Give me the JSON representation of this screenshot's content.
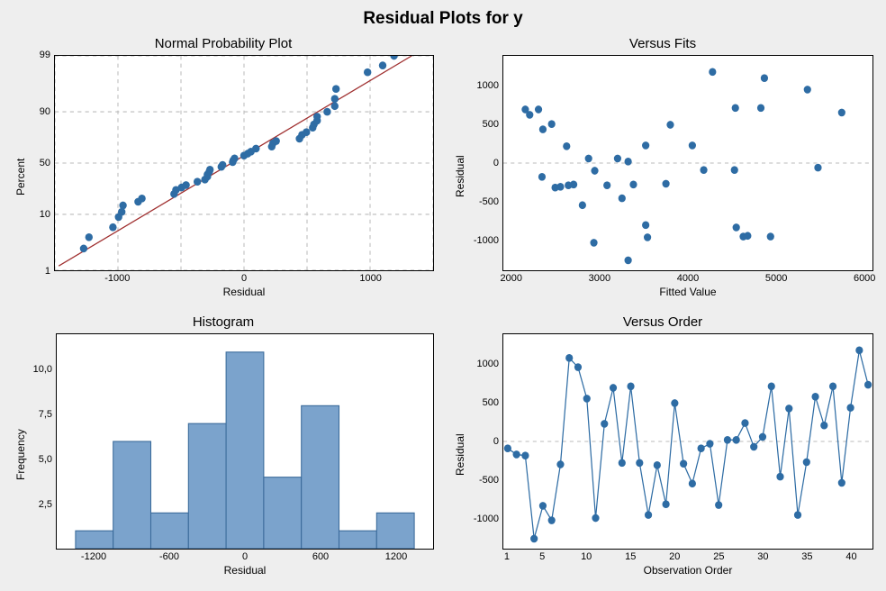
{
  "main_title": "Residual Plots for y",
  "colors": {
    "background": "#eeeeee",
    "plot_bg": "#ffffff",
    "border": "#000000",
    "grid": "#bbbbbb",
    "point_fill": "#2e6ca4",
    "bar_fill": "#7ba3cc",
    "bar_stroke": "#3a6a9a",
    "ref_line": "#a03030",
    "text": "#000000"
  },
  "fonts": {
    "main_title_size": 19,
    "sub_title_size": 15,
    "axis_label_size": 12,
    "tick_size": 11
  },
  "npp": {
    "title": "Normal Probability Plot",
    "xlabel": "Residual",
    "ylabel": "Percent",
    "xticks": [
      -1000,
      0,
      1000
    ],
    "yticks": [
      99,
      90,
      50,
      10,
      1
    ],
    "xlim": [
      -1500,
      1500
    ],
    "grid_x": [
      -1500,
      -1000,
      -500,
      0,
      500,
      1000,
      1500
    ],
    "ref_line": {
      "x1": -1470,
      "y1": 1.2,
      "x2": 1330,
      "y2": 99
    },
    "points": [
      [
        -1272,
        2.5
      ],
      [
        -1230,
        4
      ],
      [
        -1040,
        6
      ],
      [
        -995,
        9
      ],
      [
        -970,
        11
      ],
      [
        -960,
        14
      ],
      [
        -840,
        16
      ],
      [
        -810,
        18
      ],
      [
        -555,
        21
      ],
      [
        -540,
        24
      ],
      [
        -495,
        26
      ],
      [
        -460,
        28
      ],
      [
        -370,
        31
      ],
      [
        -310,
        33
      ],
      [
        -290,
        36
      ],
      [
        -290,
        38
      ],
      [
        -275,
        41
      ],
      [
        -270,
        43
      ],
      [
        -180,
        46
      ],
      [
        -170,
        48
      ],
      [
        -90,
        51
      ],
      [
        -85,
        53
      ],
      [
        -75,
        55
      ],
      [
        0,
        58
      ],
      [
        30,
        60
      ],
      [
        55,
        62
      ],
      [
        95,
        65
      ],
      [
        220,
        67
      ],
      [
        230,
        70
      ],
      [
        255,
        72
      ],
      [
        440,
        74
      ],
      [
        460,
        77
      ],
      [
        495,
        79
      ],
      [
        545,
        82
      ],
      [
        555,
        84
      ],
      [
        580,
        86
      ],
      [
        580,
        88
      ],
      [
        660,
        90
      ],
      [
        720,
        92
      ],
      [
        720,
        94
      ],
      [
        730,
        96
      ],
      [
        980,
        98
      ],
      [
        1100,
        98.5
      ],
      [
        1190,
        99
      ]
    ]
  },
  "vfits": {
    "title": "Versus Fits",
    "xlabel": "Fitted Value",
    "ylabel": "Residual",
    "xticks": [
      2000,
      3000,
      4000,
      5000,
      6000
    ],
    "yticks": [
      1000,
      500,
      0,
      -500,
      -1000
    ],
    "xlim": [
      1900,
      6100
    ],
    "ylim": [
      -1400,
      1400
    ],
    "points": [
      [
        2150,
        700
      ],
      [
        2200,
        630
      ],
      [
        2350,
        440
      ],
      [
        2300,
        700
      ],
      [
        2340,
        -180
      ],
      [
        2450,
        510
      ],
      [
        2490,
        -320
      ],
      [
        2550,
        -310
      ],
      [
        2620,
        220
      ],
      [
        2640,
        -290
      ],
      [
        2700,
        -280
      ],
      [
        2800,
        -550
      ],
      [
        2870,
        60
      ],
      [
        2940,
        -100
      ],
      [
        2930,
        -1040
      ],
      [
        3080,
        -290
      ],
      [
        3200,
        60
      ],
      [
        3250,
        -460
      ],
      [
        3320,
        20
      ],
      [
        3320,
        -1270
      ],
      [
        3380,
        -280
      ],
      [
        3520,
        230
      ],
      [
        3520,
        -810
      ],
      [
        3540,
        -970
      ],
      [
        3750,
        -270
      ],
      [
        3800,
        500
      ],
      [
        4050,
        230
      ],
      [
        4180,
        -90
      ],
      [
        4280,
        1190
      ],
      [
        4530,
        -90
      ],
      [
        4540,
        720
      ],
      [
        4550,
        -840
      ],
      [
        4630,
        -960
      ],
      [
        4680,
        -950
      ],
      [
        4830,
        720
      ],
      [
        4870,
        1110
      ],
      [
        4940,
        -960
      ],
      [
        5360,
        960
      ],
      [
        5480,
        -60
      ],
      [
        5750,
        660
      ]
    ]
  },
  "hist": {
    "title": "Histogram",
    "xlabel": "Residual",
    "ylabel": "Frequency",
    "xticks": [
      -1200,
      -600,
      0,
      600,
      1200
    ],
    "yticks": [
      "10,0",
      "7,5",
      "5,0",
      "2,5"
    ],
    "xlim": [
      -1500,
      1500
    ],
    "ylim": [
      0,
      12
    ],
    "bin_width": 300,
    "bars": [
      {
        "center": -1200,
        "count": 1
      },
      {
        "center": -900,
        "count": 6
      },
      {
        "center": -600,
        "count": 2
      },
      {
        "center": -300,
        "count": 7
      },
      {
        "center": 0,
        "count": 11
      },
      {
        "center": 300,
        "count": 4
      },
      {
        "center": 600,
        "count": 8
      },
      {
        "center": 900,
        "count": 1
      },
      {
        "center": 1200,
        "count": 2
      }
    ]
  },
  "vorder": {
    "title": "Versus Order",
    "xlabel": "Observation Order",
    "ylabel": "Residual",
    "xticks": [
      1,
      5,
      10,
      15,
      20,
      25,
      30,
      35,
      40
    ],
    "yticks": [
      1000,
      500,
      0,
      -500,
      -1000
    ],
    "xlim": [
      0.5,
      42.5
    ],
    "ylim": [
      -1400,
      1400
    ],
    "values": [
      -90,
      -170,
      -185,
      -1270,
      -840,
      -1030,
      -300,
      1090,
      970,
      560,
      -1000,
      230,
      700,
      -280,
      720,
      -280,
      -960,
      -310,
      -820,
      500,
      -290,
      -550,
      -90,
      -30,
      -830,
      20,
      20,
      240,
      -70,
      60,
      720,
      -460,
      430,
      -960,
      -270,
      585,
      210,
      720,
      -540,
      440,
      1190,
      740
    ]
  }
}
